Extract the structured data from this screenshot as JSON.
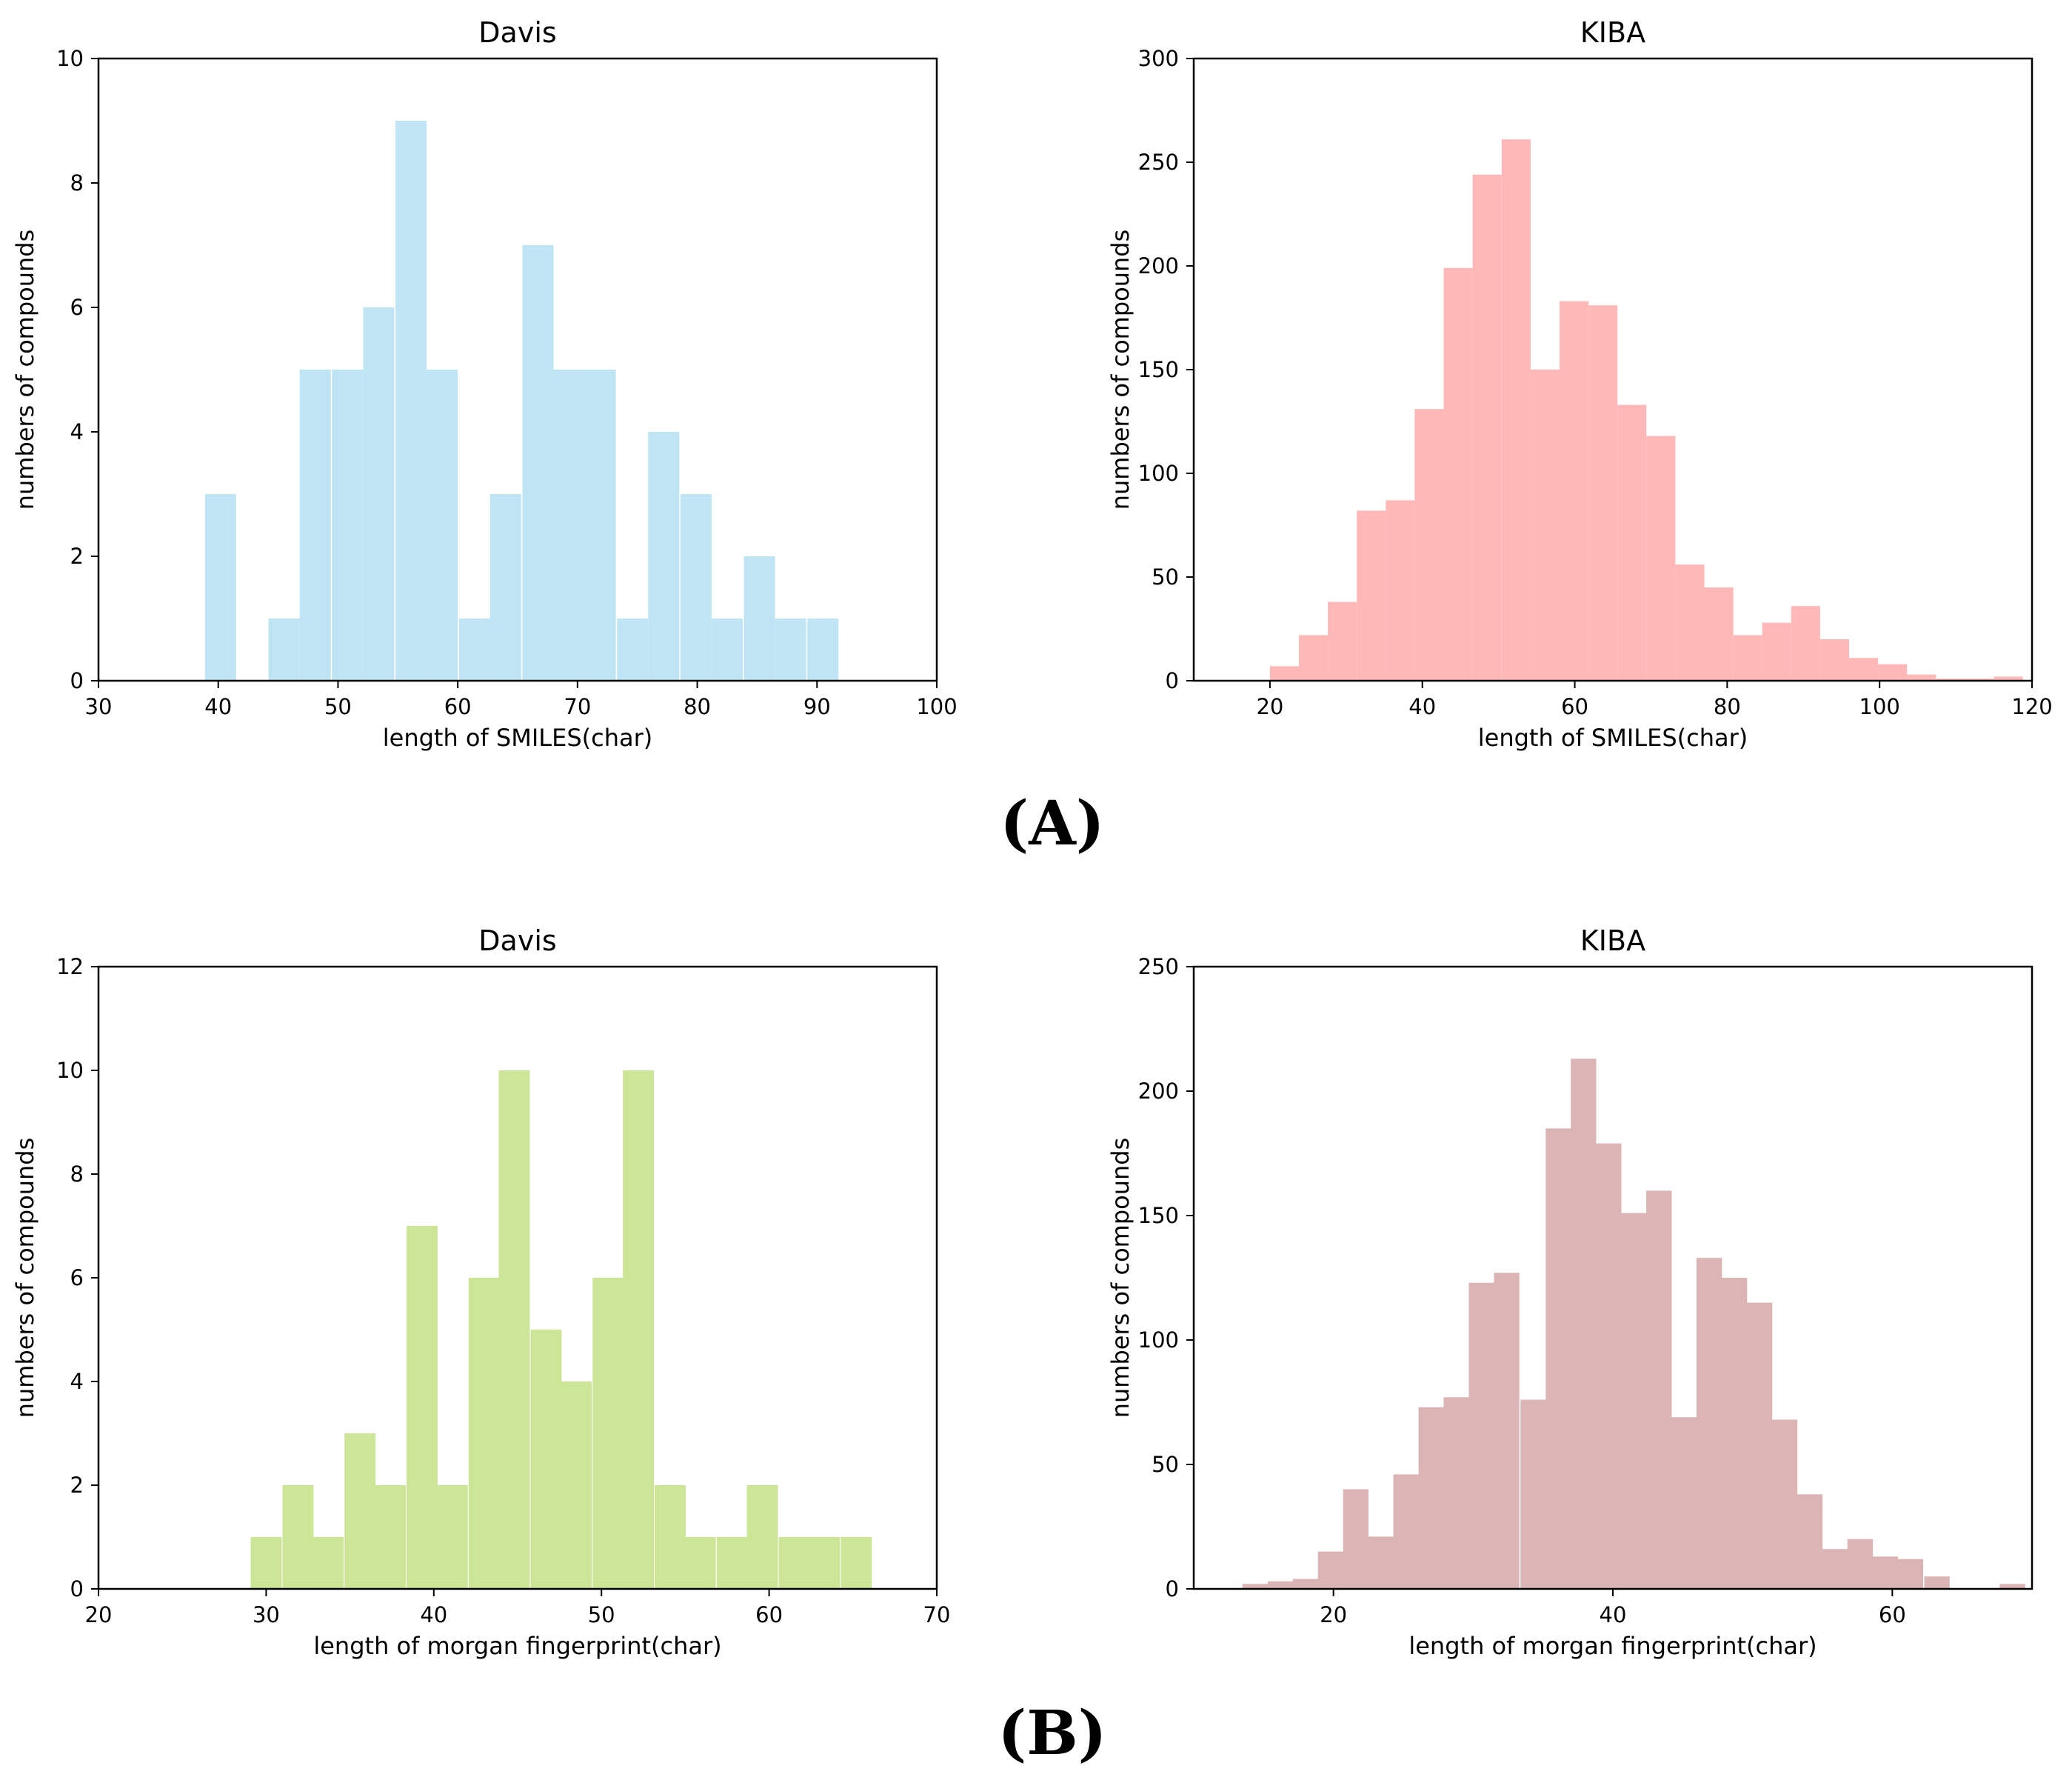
{
  "panel_labels": {
    "a": "(A)",
    "b": "(B)"
  },
  "chart_data": [
    {
      "id": "davis-smiles",
      "type": "bar",
      "title": "Davis",
      "xlabel": "length of SMILES(char)",
      "ylabel": "numbers of compounds",
      "color": "#bfe4f3",
      "xlim": [
        30,
        100
      ],
      "ylim": [
        0,
        10
      ],
      "xticks": [
        30,
        40,
        50,
        60,
        70,
        80,
        90,
        100
      ],
      "yticks": [
        0,
        2,
        4,
        6,
        8,
        10
      ],
      "bin_width": 2.6,
      "bins": [
        {
          "x": 40.2,
          "y": 3
        },
        {
          "x": 45.5,
          "y": 1
        },
        {
          "x": 48.1,
          "y": 5
        },
        {
          "x": 50.8,
          "y": 5
        },
        {
          "x": 53.4,
          "y": 6
        },
        {
          "x": 56.1,
          "y": 9
        },
        {
          "x": 58.7,
          "y": 5
        },
        {
          "x": 61.4,
          "y": 1
        },
        {
          "x": 64.0,
          "y": 3
        },
        {
          "x": 66.7,
          "y": 7
        },
        {
          "x": 69.3,
          "y": 5
        },
        {
          "x": 71.9,
          "y": 5
        },
        {
          "x": 74.6,
          "y": 1
        },
        {
          "x": 77.2,
          "y": 4
        },
        {
          "x": 79.9,
          "y": 3
        },
        {
          "x": 82.5,
          "y": 1
        },
        {
          "x": 85.2,
          "y": 2
        },
        {
          "x": 87.8,
          "y": 1
        },
        {
          "x": 90.5,
          "y": 1
        }
      ]
    },
    {
      "id": "kiba-smiles",
      "type": "bar",
      "title": "KIBA",
      "xlabel": "length of SMILES(char)",
      "ylabel": "numbers of compounds",
      "color": "#ffb8b8",
      "xlim": [
        10,
        120
      ],
      "ylim": [
        0,
        300
      ],
      "xticks": [
        20,
        40,
        60,
        80,
        100,
        120
      ],
      "yticks": [
        0,
        50,
        100,
        150,
        200,
        250,
        300
      ],
      "bin_width": 3.8,
      "bins": [
        {
          "x": 21.9,
          "y": 7
        },
        {
          "x": 25.7,
          "y": 22
        },
        {
          "x": 29.5,
          "y": 38
        },
        {
          "x": 33.3,
          "y": 82
        },
        {
          "x": 37.1,
          "y": 87
        },
        {
          "x": 40.9,
          "y": 131
        },
        {
          "x": 44.7,
          "y": 199
        },
        {
          "x": 48.5,
          "y": 244
        },
        {
          "x": 52.3,
          "y": 261
        },
        {
          "x": 56.1,
          "y": 150
        },
        {
          "x": 59.9,
          "y": 183
        },
        {
          "x": 63.7,
          "y": 181
        },
        {
          "x": 67.5,
          "y": 133
        },
        {
          "x": 71.3,
          "y": 118
        },
        {
          "x": 75.1,
          "y": 56
        },
        {
          "x": 78.9,
          "y": 45
        },
        {
          "x": 82.7,
          "y": 22
        },
        {
          "x": 86.5,
          "y": 28
        },
        {
          "x": 90.3,
          "y": 36
        },
        {
          "x": 94.1,
          "y": 20
        },
        {
          "x": 97.9,
          "y": 11
        },
        {
          "x": 101.7,
          "y": 8
        },
        {
          "x": 105.5,
          "y": 3
        },
        {
          "x": 109.3,
          "y": 1
        },
        {
          "x": 113.1,
          "y": 1
        },
        {
          "x": 116.9,
          "y": 2
        }
      ]
    },
    {
      "id": "davis-morgan",
      "type": "bar",
      "title": "Davis",
      "xlabel": "length of morgan fingerprint(char)",
      "ylabel": "numbers of compounds",
      "color": "#cde596",
      "xlim": [
        20,
        70
      ],
      "ylim": [
        0,
        12
      ],
      "xticks": [
        20,
        30,
        40,
        50,
        60,
        70
      ],
      "yticks": [
        0,
        2,
        4,
        6,
        8,
        10,
        12
      ],
      "bin_width": 1.85,
      "bins": [
        {
          "x": 30.0,
          "y": 1
        },
        {
          "x": 31.9,
          "y": 2
        },
        {
          "x": 33.7,
          "y": 1
        },
        {
          "x": 35.6,
          "y": 3
        },
        {
          "x": 37.4,
          "y": 2
        },
        {
          "x": 39.3,
          "y": 7
        },
        {
          "x": 41.1,
          "y": 2
        },
        {
          "x": 43.0,
          "y": 6
        },
        {
          "x": 44.8,
          "y": 10
        },
        {
          "x": 46.7,
          "y": 5
        },
        {
          "x": 48.5,
          "y": 4
        },
        {
          "x": 50.4,
          "y": 6
        },
        {
          "x": 52.2,
          "y": 10
        },
        {
          "x": 54.1,
          "y": 2
        },
        {
          "x": 55.9,
          "y": 1
        },
        {
          "x": 57.8,
          "y": 1
        },
        {
          "x": 59.6,
          "y": 2
        },
        {
          "x": 61.5,
          "y": 1
        },
        {
          "x": 63.3,
          "y": 1
        },
        {
          "x": 65.2,
          "y": 1
        }
      ]
    },
    {
      "id": "kiba-morgan",
      "type": "bar",
      "title": "KIBA",
      "xlabel": "length of morgan fingerprint(char)",
      "ylabel": "numbers of compounds",
      "color": "#dbb5b5",
      "xlim": [
        10,
        70
      ],
      "ylim": [
        0,
        250
      ],
      "xticks": [
        20,
        40,
        60
      ],
      "yticks": [
        0,
        50,
        100,
        150,
        200,
        250
      ],
      "bin_width": 1.82,
      "bins": [
        {
          "x": 14.4,
          "y": 2
        },
        {
          "x": 16.2,
          "y": 3
        },
        {
          "x": 18.0,
          "y": 4
        },
        {
          "x": 19.8,
          "y": 15
        },
        {
          "x": 21.6,
          "y": 40
        },
        {
          "x": 23.4,
          "y": 21
        },
        {
          "x": 25.2,
          "y": 46
        },
        {
          "x": 27.0,
          "y": 73
        },
        {
          "x": 28.8,
          "y": 77
        },
        {
          "x": 30.6,
          "y": 123
        },
        {
          "x": 32.4,
          "y": 127
        },
        {
          "x": 34.3,
          "y": 76
        },
        {
          "x": 36.1,
          "y": 185
        },
        {
          "x": 37.9,
          "y": 213
        },
        {
          "x": 39.7,
          "y": 179
        },
        {
          "x": 41.5,
          "y": 151
        },
        {
          "x": 43.3,
          "y": 160
        },
        {
          "x": 45.1,
          "y": 69
        },
        {
          "x": 46.9,
          "y": 133
        },
        {
          "x": 48.7,
          "y": 125
        },
        {
          "x": 50.5,
          "y": 115
        },
        {
          "x": 52.3,
          "y": 68
        },
        {
          "x": 54.1,
          "y": 38
        },
        {
          "x": 55.9,
          "y": 16
        },
        {
          "x": 57.7,
          "y": 20
        },
        {
          "x": 59.5,
          "y": 13
        },
        {
          "x": 61.3,
          "y": 12
        },
        {
          "x": 63.2,
          "y": 5
        },
        {
          "x": 68.6,
          "y": 2
        }
      ]
    }
  ]
}
